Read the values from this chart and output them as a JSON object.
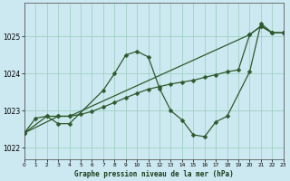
{
  "title": "Graphe pression niveau de la mer (hPa)",
  "bg_color": "#cce8f0",
  "line_color": "#2d5a2d",
  "grid_color": "#99ccbb",
  "ylim": [
    1021.7,
    1025.9
  ],
  "xlim": [
    0,
    23
  ],
  "yticks": [
    1022,
    1023,
    1024,
    1025
  ],
  "xticks": [
    0,
    1,
    2,
    3,
    4,
    5,
    6,
    7,
    8,
    9,
    10,
    11,
    12,
    13,
    14,
    15,
    16,
    17,
    18,
    19,
    20,
    21,
    22,
    23
  ],
  "series1_x": [
    0,
    1,
    2,
    3,
    4,
    5,
    6,
    7,
    8,
    9,
    10,
    11,
    12,
    13,
    14,
    15,
    16,
    17,
    18,
    19,
    20,
    21,
    22,
    23
  ],
  "series1_y": [
    1022.4,
    1022.8,
    1022.85,
    1022.85,
    1022.85,
    1022.9,
    1022.98,
    1023.1,
    1023.22,
    1023.35,
    1023.47,
    1023.58,
    1023.65,
    1023.72,
    1023.77,
    1023.82,
    1023.9,
    1023.97,
    1024.05,
    1024.1,
    1025.05,
    1025.28,
    1025.1,
    1025.1
  ],
  "series2_x": [
    0,
    2,
    3,
    4,
    7,
    8,
    9,
    10,
    11,
    12,
    13,
    14,
    15,
    16,
    17,
    18,
    20,
    21,
    22,
    23
  ],
  "series2_y": [
    1022.4,
    1022.85,
    1022.65,
    1022.65,
    1023.55,
    1024.0,
    1024.5,
    1024.6,
    1024.45,
    1023.6,
    1023.0,
    1022.75,
    1022.35,
    1022.3,
    1022.7,
    1022.85,
    1024.05,
    1025.35,
    1025.1,
    1025.1
  ],
  "series3_x": [
    0,
    3,
    4,
    20,
    21,
    22,
    23
  ],
  "series3_y": [
    1022.4,
    1022.85,
    1022.85,
    1025.05,
    1025.28,
    1025.1,
    1025.1
  ]
}
